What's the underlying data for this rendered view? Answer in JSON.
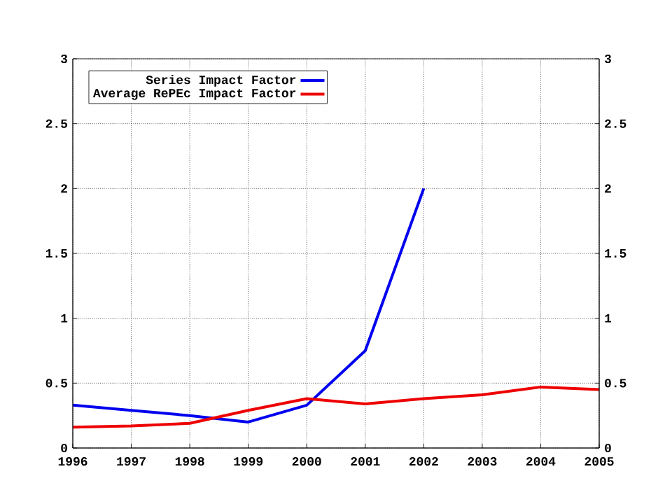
{
  "chart_data": {
    "type": "line",
    "x": [
      1996,
      1997,
      1998,
      1999,
      2000,
      2001,
      2002,
      2003,
      2004,
      2005
    ],
    "series": [
      {
        "name": "Series Impact Factor",
        "color": "#0000ee",
        "values": [
          0.33,
          0.29,
          0.25,
          0.2,
          0.33,
          0.75,
          2.0,
          null,
          null,
          null
        ]
      },
      {
        "name": "Average RePEc Impact Factor",
        "color": "#ee0000",
        "values": [
          0.16,
          0.17,
          0.19,
          0.29,
          0.38,
          0.34,
          0.38,
          0.41,
          0.47,
          0.45
        ]
      }
    ],
    "xlim": [
      1996,
      2005
    ],
    "xticks": [
      1996,
      1997,
      1998,
      1999,
      2000,
      2001,
      2002,
      2003,
      2004,
      2005
    ],
    "ylim": [
      0,
      3
    ],
    "yticks": [
      0,
      0.5,
      1,
      1.5,
      2,
      2.5,
      3
    ],
    "y2lim": [
      0,
      3
    ],
    "y2ticks": [
      0,
      0.5,
      1,
      1.5,
      2,
      2.5,
      3
    ],
    "grid": true,
    "legend": "top left",
    "marker": "none",
    "line_style": "solid"
  }
}
